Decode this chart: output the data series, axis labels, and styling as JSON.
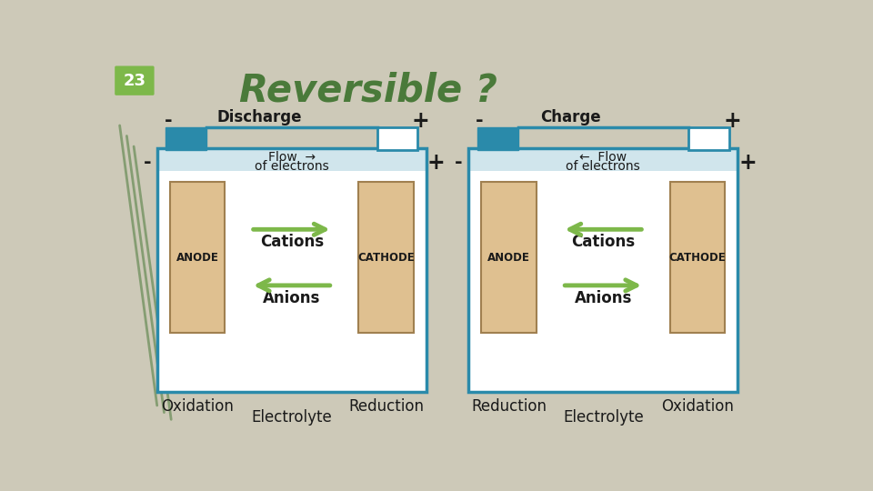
{
  "title": "Reversible ?",
  "slide_number": "23",
  "bg_color": "#cdc9b8",
  "title_color": "#4a7a3a",
  "slide_num_bg": "#7db84a",
  "slide_num_color": "white",
  "cell_bg": "#dfc090",
  "border_color": "#2a8aaa",
  "arrow_color": "#7db84a",
  "discharge_label": "Discharge",
  "charge_label": "Charge",
  "flow_discharge": "Flow  →",
  "flow_discharge2": "of electrons",
  "flow_charge": "←  Flow",
  "flow_charge2": "of electrons",
  "cations": "Cations",
  "anions": "Anions",
  "anode": "ANODE",
  "cathode": "CATHODE",
  "electrolyte": "Electrolyte",
  "oxidation": "Oxidation",
  "reduction": "Reduction",
  "plus": "+",
  "minus": "-",
  "label_color": "#1a1a1a",
  "connector_color": "#2a8aaa"
}
